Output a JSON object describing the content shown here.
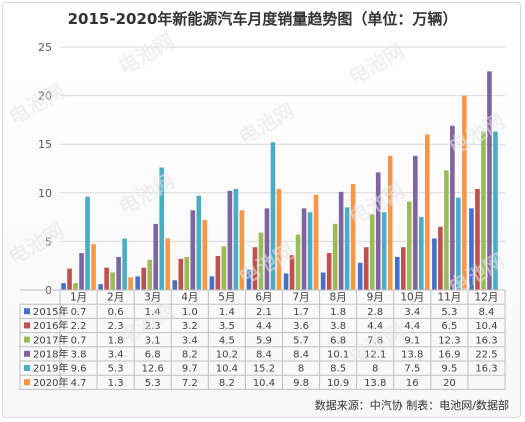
{
  "chart_data": {
    "type": "bar",
    "title": "2015-2020年新能源汽车月度销量趋势图（单位：万辆）",
    "categories": [
      "1月",
      "2月",
      "3月",
      "4月",
      "5月",
      "6月",
      "7月",
      "8月",
      "9月",
      "10月",
      "11月",
      "12月"
    ],
    "ylim": [
      0,
      25
    ],
    "yticks": [
      0,
      5,
      10,
      15,
      20,
      25
    ],
    "grid": true,
    "legend": "data-table",
    "series": [
      {
        "name": "2015年",
        "color": "#4472C4",
        "values": [
          0.7,
          0.6,
          1.4,
          1.0,
          1.4,
          2.1,
          1.7,
          1.8,
          2.8,
          3.4,
          5.3,
          8.4
        ],
        "labels": [
          "0.7",
          "0.6",
          "1.4",
          "1.0",
          "1.4",
          "2.1",
          "1.7",
          "1.8",
          "2.8",
          "3.4",
          "5.3",
          "8.4"
        ]
      },
      {
        "name": "2016年",
        "color": "#C0504D",
        "values": [
          2.2,
          2.3,
          2.3,
          3.2,
          3.5,
          4.4,
          3.6,
          3.8,
          4.4,
          4.4,
          6.5,
          10.4
        ],
        "labels": [
          "2.2",
          "2.3",
          "2.3",
          "3.2",
          "3.5",
          "4.4",
          "3.6",
          "3.8",
          "4.4",
          "4.4",
          "6.5",
          "10.4"
        ]
      },
      {
        "name": "2017年",
        "color": "#9BBB59",
        "values": [
          0.7,
          1.8,
          3.1,
          3.4,
          4.5,
          5.9,
          5.7,
          6.8,
          7.8,
          9.1,
          12.3,
          16.3
        ],
        "labels": [
          "0.7",
          "1.8",
          "3.1",
          "3.4",
          "4.5",
          "5.9",
          "5.7",
          "6.8",
          "7.8",
          "9.1",
          "12.3",
          "16.3"
        ]
      },
      {
        "name": "2018年",
        "color": "#8064A2",
        "values": [
          3.8,
          3.4,
          6.8,
          8.2,
          10.2,
          8.4,
          8.4,
          10.1,
          12.1,
          13.8,
          16.9,
          22.5
        ],
        "labels": [
          "3.8",
          "3.4",
          "6.8",
          "8.2",
          "10.2",
          "8.4",
          "8.4",
          "10.1",
          "12.1",
          "13.8",
          "16.9",
          "22.5"
        ]
      },
      {
        "name": "2019年",
        "color": "#4BACC6",
        "values": [
          9.6,
          5.3,
          12.6,
          9.7,
          10.4,
          15.2,
          8,
          8.5,
          8,
          7.5,
          9.5,
          16.3
        ],
        "labels": [
          "9.6",
          "5.3",
          "12.6",
          "9.7",
          "10.4",
          "15.2",
          "8",
          "8.5",
          "8",
          "7.5",
          "9.5",
          "16.3"
        ]
      },
      {
        "name": "2020年",
        "color": "#F79646",
        "values": [
          4.7,
          1.3,
          5.3,
          7.2,
          8.2,
          10.4,
          9.8,
          10.9,
          13.8,
          16,
          20,
          null
        ],
        "labels": [
          "4.7",
          "1.3",
          "5.3",
          "7.2",
          "8.2",
          "10.4",
          "9.8",
          "10.9",
          "13.8",
          "16",
          "20",
          ""
        ]
      }
    ]
  },
  "source_note": "数据来源：中汽协  制表：电池网/数据部",
  "watermark": "电池网"
}
